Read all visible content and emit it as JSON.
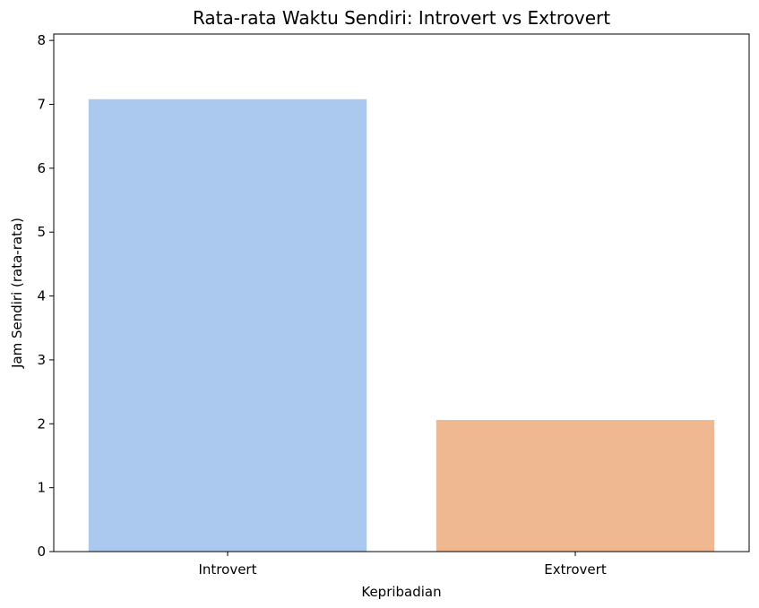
{
  "chart_data": {
    "type": "bar",
    "title": "Rata-rata Waktu Sendiri: Introvert vs Extrovert",
    "xlabel": "Kepribadian",
    "ylabel": "Jam Sendiri (rata-rata)",
    "categories": [
      "Introvert",
      "Extrovert"
    ],
    "values": [
      7.08,
      2.06
    ],
    "colors": [
      "#abc9ee",
      "#f0b891"
    ],
    "ylim": [
      0,
      8.1
    ],
    "yticks": [
      "0",
      "1",
      "2",
      "3",
      "4",
      "5",
      "6",
      "7",
      "8"
    ],
    "grid": false,
    "legend": "none"
  }
}
